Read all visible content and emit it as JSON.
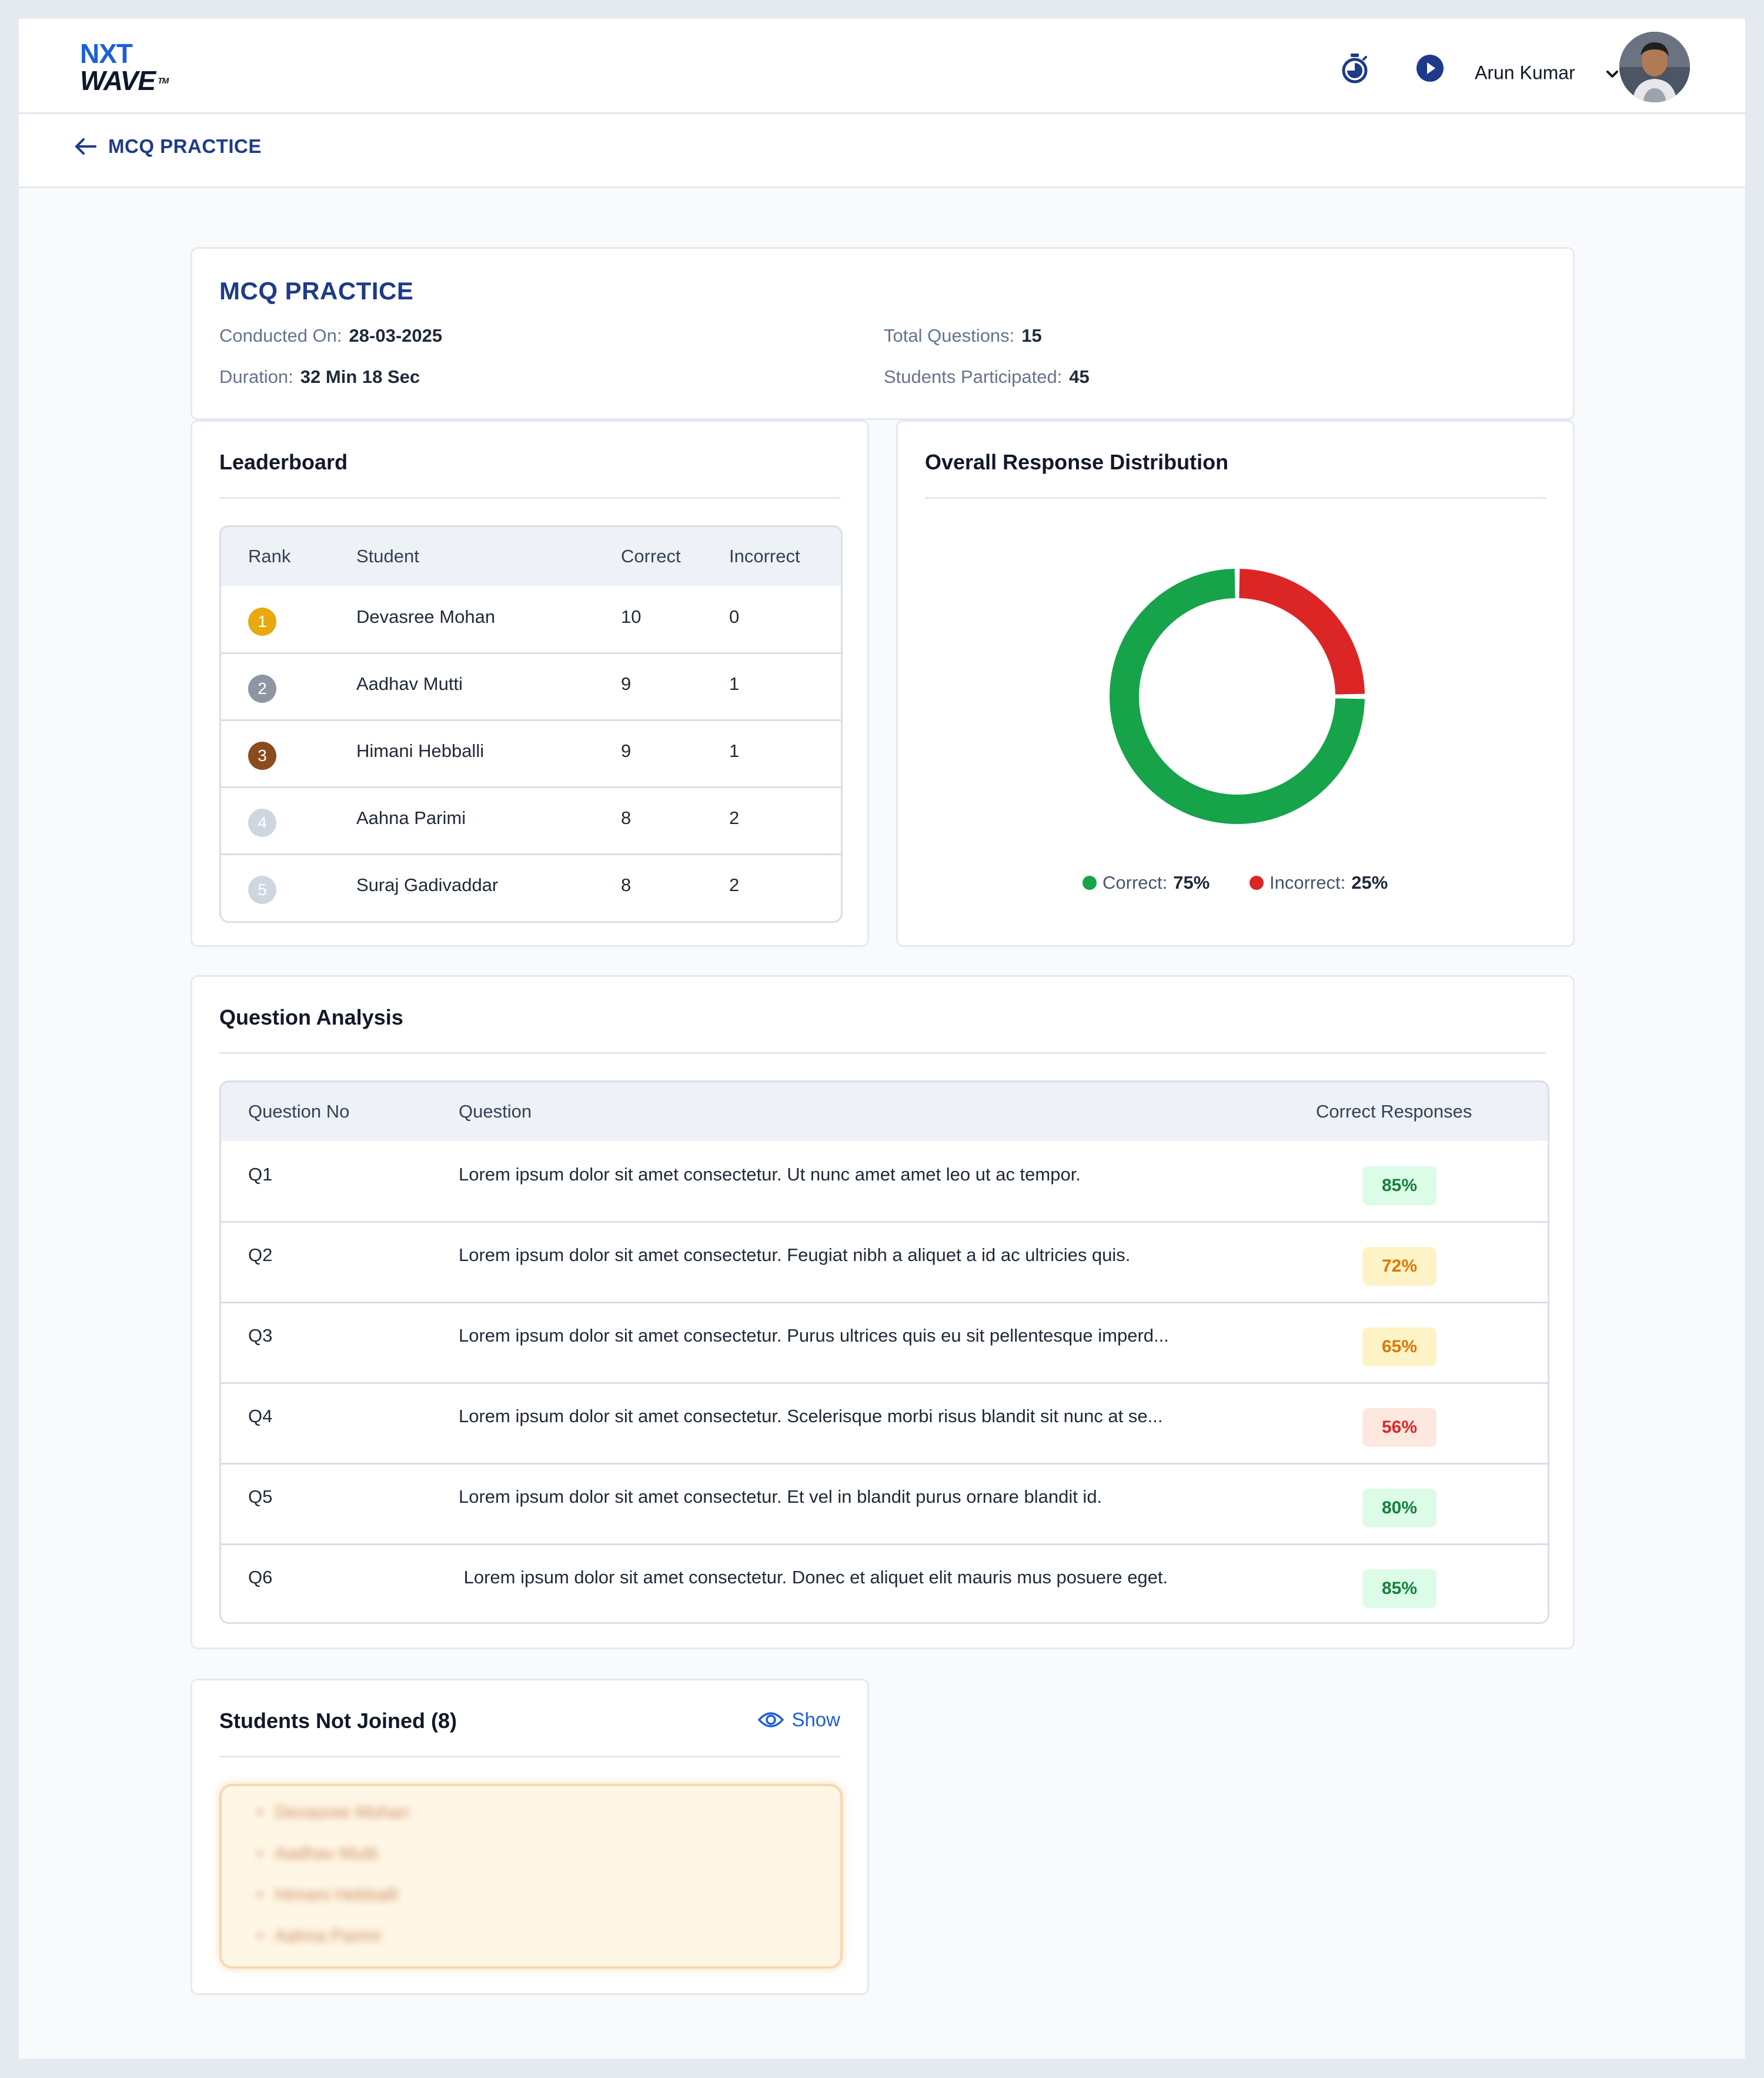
{
  "header": {
    "logo": {
      "line1": "NXT",
      "line2": "WAVE",
      "tm": "TM"
    },
    "icons": [
      "timer-icon",
      "play-icon",
      "chevron-down-icon"
    ],
    "user_name": "Arun Kumar"
  },
  "subheader": {
    "back_label": "MCQ PRACTICE"
  },
  "info": {
    "title": "MCQ PRACTICE",
    "conducted_on_label": "Conducted On:",
    "conducted_on_value": "28-03-2025",
    "duration_label": "Duration:",
    "duration_value": "32 Min 18 Sec",
    "total_questions_label": "Total Questions:",
    "total_questions_value": "15",
    "students_label": "Students Participated:",
    "students_value": "45"
  },
  "leaderboard": {
    "title": "Leaderboard",
    "headers": [
      "Rank",
      "Student",
      "Correct",
      "Incorrect"
    ],
    "rows": [
      {
        "rank": "1",
        "student": "Devasree Mohan",
        "correct": "10",
        "incorrect": "0",
        "badge_color": "#e8a90e"
      },
      {
        "rank": "2",
        "student": "Aadhav Mutti",
        "correct": "9",
        "incorrect": "1",
        "badge_color": "#8e96a3"
      },
      {
        "rank": "3",
        "student": "Himani Hebballi",
        "correct": "9",
        "incorrect": "1",
        "badge_color": "#8a4b1f"
      },
      {
        "rank": "4",
        "student": "Aahna Parimi",
        "correct": "8",
        "incorrect": "2",
        "badge_color": "#cfd6e0"
      },
      {
        "rank": "5",
        "student": "Suraj Gadivaddar",
        "correct": "8",
        "incorrect": "2",
        "badge_color": "#cfd6e0"
      }
    ]
  },
  "distribution": {
    "title": "Overall Response Distribution",
    "correct_label": "Correct:",
    "correct_value": "75%",
    "incorrect_label": "Incorrect:",
    "incorrect_value": "25%",
    "correct_fraction": 0.75,
    "incorrect_fraction": 0.25,
    "colors": {
      "correct": "#16a34a",
      "incorrect": "#dc2626"
    }
  },
  "question_analysis": {
    "title": "Question Analysis",
    "headers": [
      "Question No",
      "Question",
      "Correct Responses"
    ],
    "rows": [
      {
        "no": "Q1",
        "question": "Lorem ipsum dolor sit amet consectetur. Ut nunc amet amet leo ut ac tempor.",
        "percent": "85%",
        "level": "green"
      },
      {
        "no": "Q2",
        "question": "Lorem ipsum dolor sit amet consectetur. Feugiat nibh a aliquet a id ac ultricies quis.",
        "percent": "72%",
        "level": "yellow"
      },
      {
        "no": "Q3",
        "question": "Lorem ipsum dolor sit amet consectetur. Purus ultrices quis eu sit pellentesque imperd...",
        "percent": "65%",
        "level": "yellow"
      },
      {
        "no": "Q4",
        "question": "Lorem ipsum dolor sit amet consectetur. Scelerisque morbi risus blandit sit nunc at se...",
        "percent": "56%",
        "level": "red"
      },
      {
        "no": "Q5",
        "question": "Lorem ipsum dolor sit amet consectetur. Et vel in blandit purus ornare blandit id.",
        "percent": "80%",
        "level": "green"
      },
      {
        "no": "Q6",
        "question": " Lorem ipsum dolor sit amet consectetur. Donec et aliquet elit mauris mus posuere eget.",
        "percent": "85%",
        "level": "green"
      }
    ],
    "level_colors": {
      "green": {
        "bg": "#dcfce7",
        "fg": "#15803d"
      },
      "yellow": {
        "bg": "#fef3c7",
        "fg": "#d97706"
      },
      "red": {
        "bg": "#fde8e0",
        "fg": "#dc2626"
      }
    }
  },
  "not_joined": {
    "title": "Students Not Joined (8)",
    "show_label": "Show",
    "blurred_names": [
      "Devasree Mohan",
      "Aadhav Mutti",
      "Himani Hebballi",
      "Aahna Parimi"
    ]
  }
}
